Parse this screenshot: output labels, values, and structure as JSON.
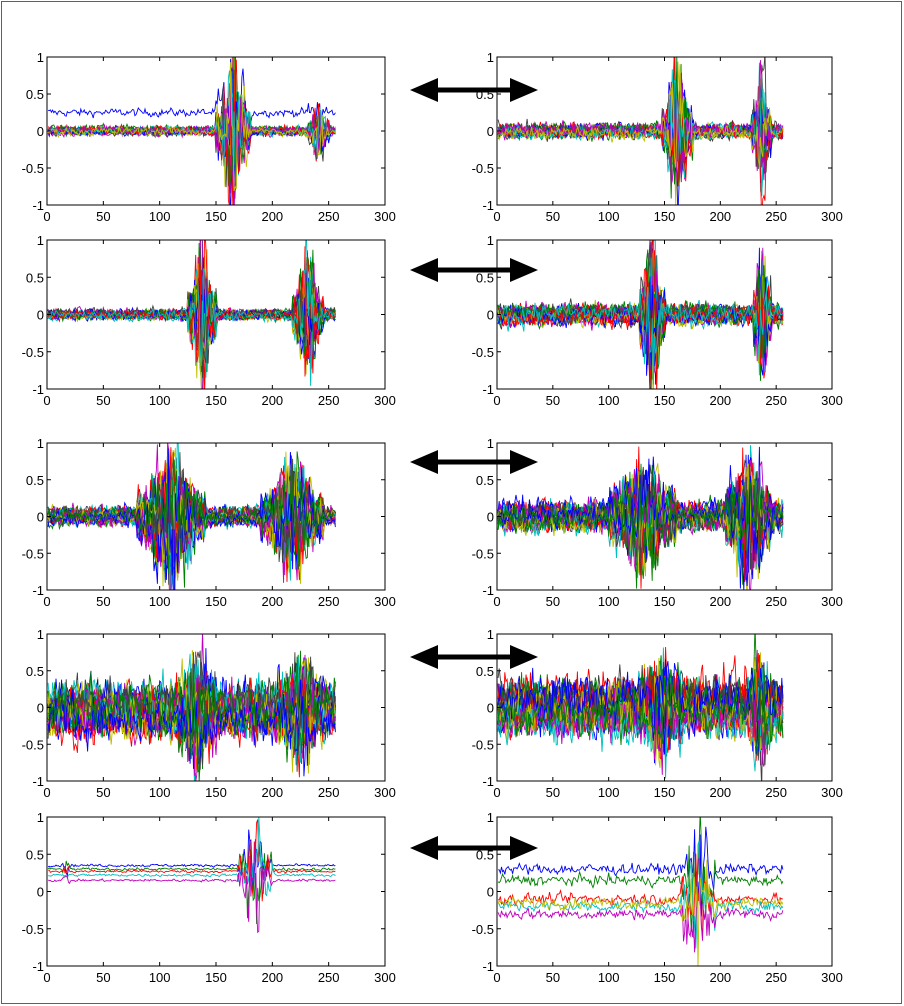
{
  "figure": {
    "rows": 5,
    "cols": 2,
    "arrow": "double-headed-arrow",
    "colors": [
      "#0000ff",
      "#008000",
      "#ff0000",
      "#00bfbf",
      "#bf00bf",
      "#bfbf00",
      "#404040"
    ]
  },
  "chart_data": [
    {
      "type": "line",
      "row": 1,
      "col": 1,
      "xlim": [
        0,
        300
      ],
      "ylim": [
        -1,
        1
      ],
      "xticks": [
        "0",
        "50",
        "100",
        "150",
        "200",
        "250",
        "300"
      ],
      "yticks": [
        "1",
        "0.5",
        "0",
        "-0.5",
        "-1"
      ],
      "series_count": 20,
      "x_end": 256,
      "baseline": 0.0,
      "noise": 0.06,
      "bursts": [
        {
          "start": 150,
          "end": 180,
          "amp": 1.3
        },
        {
          "start": 232,
          "end": 250,
          "amp": 0.45
        }
      ],
      "top_series_level": 0.25,
      "grid": false
    },
    {
      "type": "line",
      "row": 1,
      "col": 2,
      "xlim": [
        0,
        300
      ],
      "ylim": [
        -1,
        1
      ],
      "xticks": [
        "0",
        "50",
        "100",
        "150",
        "200",
        "250",
        "300"
      ],
      "yticks": [
        "1",
        "0.5",
        "0",
        "-0.5",
        "-1"
      ],
      "series_count": 20,
      "x_end": 256,
      "baseline": 0.0,
      "noise": 0.1,
      "bursts": [
        {
          "start": 148,
          "end": 175,
          "amp": 1.1
        },
        {
          "start": 228,
          "end": 245,
          "amp": 1.0
        }
      ],
      "grid": false
    },
    {
      "type": "line",
      "row": 2,
      "col": 1,
      "xlim": [
        0,
        300
      ],
      "ylim": [
        -1,
        1
      ],
      "xticks": [
        "0",
        "50",
        "100",
        "150",
        "200",
        "250",
        "300"
      ],
      "yticks": [
        "1",
        "0.5",
        "0",
        "-0.5",
        "-1"
      ],
      "series_count": 25,
      "x_end": 256,
      "baseline": 0.0,
      "noise": 0.07,
      "bursts": [
        {
          "start": 125,
          "end": 150,
          "amp": 1.2
        },
        {
          "start": 218,
          "end": 245,
          "amp": 1.0
        }
      ],
      "grid": false
    },
    {
      "type": "line",
      "row": 2,
      "col": 2,
      "xlim": [
        0,
        300
      ],
      "ylim": [
        -1,
        1
      ],
      "xticks": [
        "0",
        "50",
        "100",
        "150",
        "200",
        "250",
        "300"
      ],
      "yticks": [
        "1",
        "0.5",
        "0",
        "-0.5",
        "-1"
      ],
      "series_count": 25,
      "x_end": 256,
      "baseline": 0.0,
      "noise": 0.14,
      "bursts": [
        {
          "start": 128,
          "end": 150,
          "amp": 1.2
        },
        {
          "start": 230,
          "end": 245,
          "amp": 1.1
        }
      ],
      "grid": false
    },
    {
      "type": "line",
      "row": 3,
      "col": 1,
      "xlim": [
        0,
        300
      ],
      "ylim": [
        -1,
        1
      ],
      "xticks": [
        "0",
        "50",
        "100",
        "150",
        "200",
        "250",
        "300"
      ],
      "yticks": [
        "1",
        "0.5",
        "0",
        "-0.5",
        "-1"
      ],
      "series_count": 30,
      "x_end": 256,
      "baseline": 0.0,
      "noise": 0.12,
      "bursts": [
        {
          "start": 80,
          "end": 140,
          "amp": 1.0
        },
        {
          "start": 190,
          "end": 245,
          "amp": 0.85
        }
      ],
      "grid": false
    },
    {
      "type": "line",
      "row": 3,
      "col": 2,
      "xlim": [
        0,
        300
      ],
      "ylim": [
        -1,
        1
      ],
      "xticks": [
        "0",
        "50",
        "100",
        "150",
        "200",
        "250",
        "300"
      ],
      "yticks": [
        "1",
        "0.5",
        "0",
        "-0.5",
        "-1"
      ],
      "series_count": 30,
      "x_end": 256,
      "baseline": 0.0,
      "noise": 0.2,
      "bursts": [
        {
          "start": 100,
          "end": 160,
          "amp": 0.7
        },
        {
          "start": 205,
          "end": 245,
          "amp": 0.9
        }
      ],
      "grid": false
    },
    {
      "type": "line",
      "row": 4,
      "col": 1,
      "xlim": [
        0,
        300
      ],
      "ylim": [
        -1,
        1
      ],
      "xticks": [
        "0",
        "50",
        "100",
        "150",
        "200",
        "250",
        "300"
      ],
      "yticks": [
        "1",
        "0.5",
        "0",
        "-0.5",
        "-1"
      ],
      "series_count": 30,
      "x_end": 256,
      "baseline": 0.0,
      "noise": 0.35,
      "bursts": [
        {
          "start": 115,
          "end": 150,
          "amp": 0.6
        },
        {
          "start": 205,
          "end": 245,
          "amp": 0.5
        }
      ],
      "grid": false
    },
    {
      "type": "line",
      "row": 4,
      "col": 2,
      "xlim": [
        0,
        300
      ],
      "ylim": [
        -1,
        1
      ],
      "xticks": [
        "0",
        "50",
        "100",
        "150",
        "200",
        "250",
        "300"
      ],
      "yticks": [
        "1",
        "0.5",
        "0",
        "-0.5",
        "-1"
      ],
      "series_count": 30,
      "x_end": 256,
      "baseline": 0.0,
      "noise": 0.35,
      "bursts": [
        {
          "start": 130,
          "end": 165,
          "amp": 0.5
        },
        {
          "start": 225,
          "end": 245,
          "amp": 0.6
        }
      ],
      "grid": false
    },
    {
      "type": "line",
      "row": 5,
      "col": 1,
      "xlim": [
        0,
        300
      ],
      "ylim": [
        -1,
        1
      ],
      "xticks": [
        "0",
        "50",
        "100",
        "150",
        "200",
        "250",
        "300"
      ],
      "yticks": [
        "1",
        "0.5",
        "0",
        "-0.5",
        "-1"
      ],
      "series_count": 5,
      "x_end": 256,
      "baseline": 0.28,
      "noise": 0.02,
      "levels": [
        0.35,
        0.3,
        0.27,
        0.22,
        0.15
      ],
      "bursts": [
        {
          "start": 170,
          "end": 200,
          "amp": 1.0
        },
        {
          "start": 14,
          "end": 20,
          "amp": 0.15
        }
      ],
      "grid": false
    },
    {
      "type": "line",
      "row": 5,
      "col": 2,
      "xlim": [
        0,
        300
      ],
      "ylim": [
        -1,
        1
      ],
      "xticks": [
        "0",
        "50",
        "100",
        "150",
        "200",
        "250",
        "300"
      ],
      "yticks": [
        "1",
        "0.5",
        "0",
        "-0.5",
        "-1"
      ],
      "series_count": 6,
      "x_end": 256,
      "baseline": 0.0,
      "noise": 0.08,
      "levels": [
        0.3,
        0.15,
        -0.1,
        -0.2,
        -0.3,
        -0.15
      ],
      "bursts": [
        {
          "start": 165,
          "end": 195,
          "amp": 1.1
        }
      ],
      "grid": false
    }
  ]
}
